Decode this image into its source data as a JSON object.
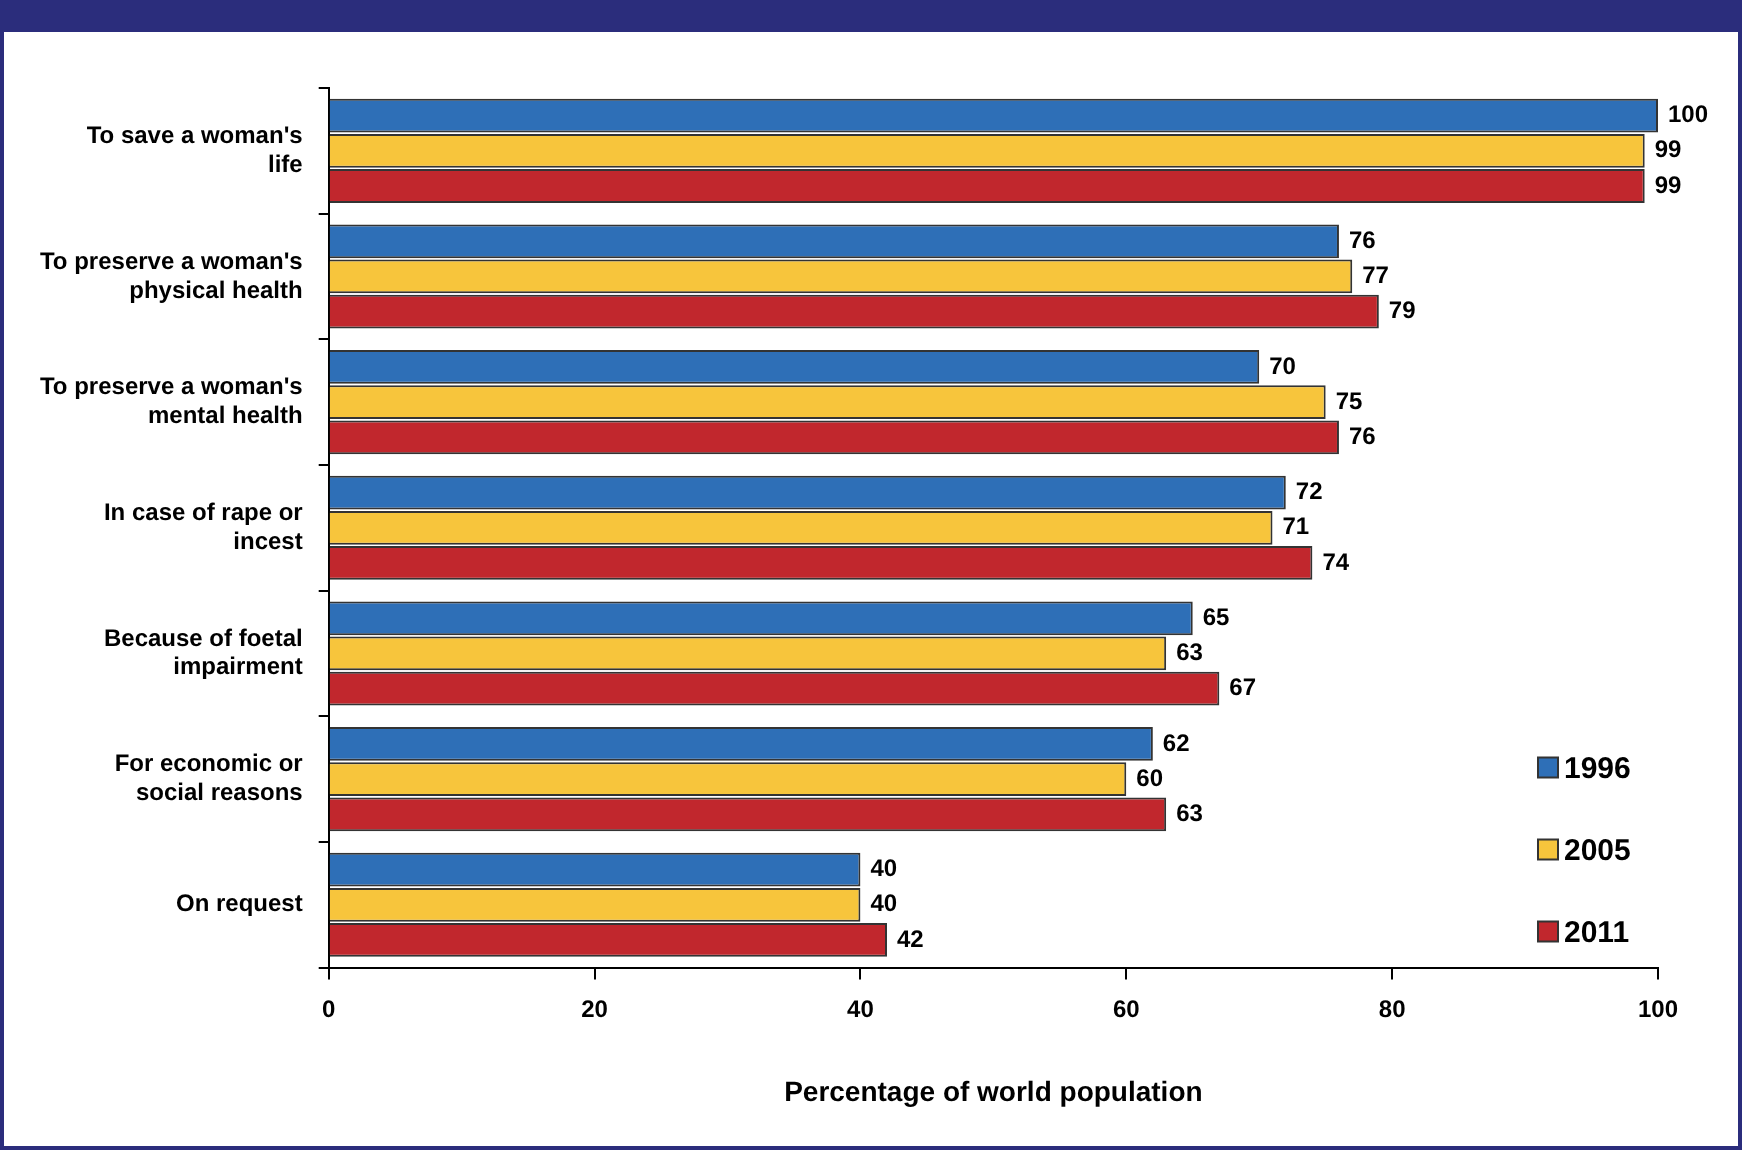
{
  "chart_data": {
    "type": "bar",
    "orientation": "horizontal",
    "xlabel": "Percentage of world population",
    "categories": [
      "To save a woman's life",
      "To preserve a woman's physical health",
      "To preserve a woman's mental health",
      "In case of rape or incest",
      "Because of foetal impairment",
      "For economic or social reasons",
      "On request"
    ],
    "series": [
      {
        "name": "1996",
        "color": "#2e6fb7",
        "values": [
          100,
          76,
          70,
          72,
          65,
          62,
          40
        ]
      },
      {
        "name": "2005",
        "color": "#f7c53c",
        "values": [
          99,
          77,
          75,
          71,
          63,
          60,
          40
        ]
      },
      {
        "name": "2011",
        "color": "#c1272d",
        "values": [
          99,
          79,
          76,
          74,
          67,
          63,
          42
        ]
      }
    ],
    "xlim": [
      0,
      100
    ],
    "xticks": [
      0,
      20,
      40,
      60,
      80,
      100
    ],
    "grid": false,
    "legend": "bottom right",
    "data_labels": true
  }
}
